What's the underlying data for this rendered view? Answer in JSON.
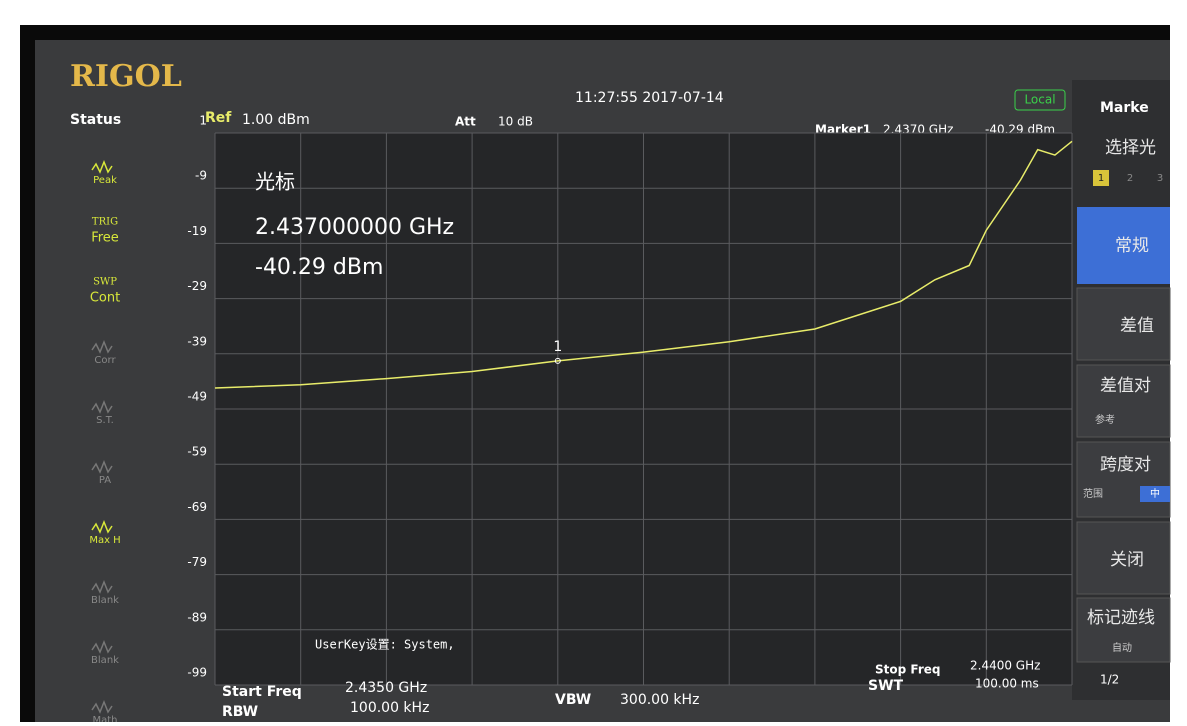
{
  "brand": "RIGOL",
  "status_title": "Status",
  "timestamp": "11:27:55 2017-07-14",
  "local": "Local",
  "status_items": [
    {
      "label": "Peak"
    },
    {
      "top": "TRIG",
      "label": "Free"
    },
    {
      "top": "SWP",
      "label": "Cont"
    },
    {
      "label": "Corr"
    },
    {
      "label": "S.T."
    },
    {
      "label": "PA"
    },
    {
      "label": "Max H"
    },
    {
      "label": "Blank"
    },
    {
      "label": "Blank"
    },
    {
      "label": "Math"
    }
  ],
  "header": {
    "ref_label": "Ref",
    "ref_value": "1.00 dBm",
    "att_label": "Att",
    "att_value": "10 dB",
    "marker_label": "Marker1",
    "marker_freq": "2.4370 GHz",
    "marker_level": "-40.29 dBm"
  },
  "readout": {
    "title": "光标",
    "freq": "2.437000000 GHz",
    "level": "-40.29 dBm"
  },
  "userkey": "UserKey设置:  System,",
  "footer": {
    "start_label": "Start Freq",
    "start_value": "2.4350 GHz",
    "rbw_label": "RBW",
    "rbw_value": "100.00 kHz",
    "vbw_label": "VBW",
    "vbw_value": "300.00 kHz",
    "stop_label": "Stop Freq",
    "stop_value": "2.4400 GHz",
    "swt_label": "SWT",
    "swt_value": "100.00 ms"
  },
  "menu": {
    "title": "Marke",
    "select": "选择光",
    "select_options": [
      "1",
      "2",
      "3"
    ],
    "normal": "常规",
    "delta": "差值",
    "delta_pair": "差值对",
    "delta_pair_sub": "参考",
    "span_pair": "跨度对",
    "span_pair_sub": "范围",
    "span_pair_sub2": "中",
    "off": "关闭",
    "trace": "标记迹线",
    "trace_sub": "自动",
    "page": "1/2"
  },
  "chart_data": {
    "type": "line",
    "color": "#e8ec6a",
    "x": [
      2.435,
      2.4355,
      2.436,
      2.4365,
      2.437,
      2.4375,
      2.438,
      2.4385,
      2.439,
      2.4392,
      2.4394,
      2.4395,
      2.4397,
      2.4398,
      2.4399,
      2.44
    ],
    "values": [
      -45.2,
      -44.6,
      -43.5,
      -42.2,
      -40.29,
      -38.7,
      -36.8,
      -34.5,
      -29.5,
      -25.6,
      -23,
      -16.6,
      -7.5,
      -2,
      -3,
      -0.5
    ],
    "xlim": [
      2.435,
      2.44
    ],
    "ylim": [
      -99,
      1
    ],
    "yticks": [
      1,
      -9,
      -19,
      -29,
      -39,
      -49,
      -59,
      -69,
      -79,
      -89,
      -99
    ],
    "grid": true,
    "marker": {
      "x": 2.437,
      "y": -40.29,
      "label": "1"
    }
  }
}
